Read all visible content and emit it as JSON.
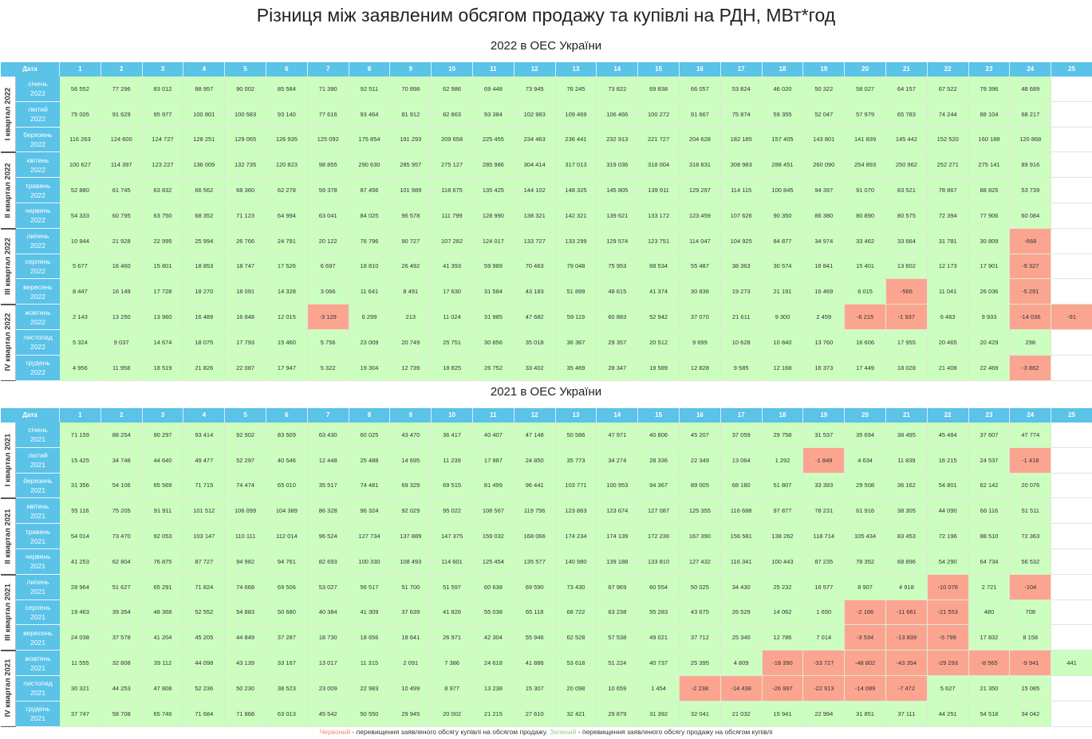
{
  "title": "Різниця між заявленим обсягом продажу та купівлі на РДН, МВт*год",
  "date_label": "Дата",
  "hours": [
    "1",
    "2",
    "3",
    "4",
    "5",
    "6",
    "7",
    "8",
    "9",
    "10",
    "11",
    "12",
    "13",
    "14",
    "15",
    "16",
    "17",
    "18",
    "19",
    "20",
    "21",
    "22",
    "23",
    "24",
    "25"
  ],
  "legend": {
    "red_word": "Червоний",
    "red_text": " - перевищення заявленого обсягу купівлі на обсягом продажу. ",
    "green_word": "Зелений",
    "green_text": " - перевищення заявленого обсягу продажу на обсягом купівлі"
  },
  "colors": {
    "positive": "#ccfec0",
    "negative": "#fba590",
    "header": "#5bc2e8"
  },
  "chart_data": [
    {
      "type": "table",
      "title": "2022 в ОЕС України",
      "quarters": [
        "I квартал 2022",
        "II квартал 2022",
        "III квартал 2022",
        "IV квартал 2022"
      ],
      "rows": [
        {
          "month": "січень",
          "year": "2022",
          "values": [
            "56 552",
            "77 296",
            "83 012",
            "88 957",
            "90 002",
            "85 584",
            "71 390",
            "92 511",
            "70 898",
            "62 986",
            "69 448",
            "73 945",
            "76 245",
            "73 822",
            "69 838",
            "66 057",
            "53 824",
            "46 020",
            "50 322",
            "58 027",
            "64 157",
            "67 522",
            "79 396",
            "48 689",
            ""
          ]
        },
        {
          "month": "лютий",
          "year": "2022",
          "values": [
            "75 005",
            "91 629",
            "95 977",
            "100 801",
            "100 583",
            "93 140",
            "77 616",
            "93 464",
            "81 912",
            "82 863",
            "93 384",
            "102 983",
            "109 469",
            "106 466",
            "100 272",
            "91 667",
            "75 874",
            "59 355",
            "52 047",
            "57 979",
            "65 783",
            "74 244",
            "88 104",
            "68 217",
            ""
          ]
        },
        {
          "month": "березень",
          "year": "2022",
          "values": [
            "116 263",
            "124 600",
            "124 727",
            "128 251",
            "129 065",
            "126 935",
            "125 092",
            "175 854",
            "191 293",
            "209 658",
            "225 455",
            "234 463",
            "236 441",
            "232 913",
            "221 727",
            "204 628",
            "182 185",
            "157 405",
            "143 801",
            "141 839",
            "145 442",
            "152 520",
            "160 188",
            "120 868",
            ""
          ]
        },
        {
          "month": "квітень",
          "year": "2022",
          "values": [
            "100 627",
            "114 397",
            "123 227",
            "136 009",
            "132 735",
            "120 823",
            "98 855",
            "290 630",
            "285 957",
            "275 127",
            "285 986",
            "304 414",
            "317 013",
            "319 036",
            "318 004",
            "318 831",
            "308 983",
            "288 451",
            "260 090",
            "254 893",
            "250 962",
            "252 271",
            "275 141",
            "89 916",
            ""
          ]
        },
        {
          "month": "травень",
          "year": "2022",
          "values": [
            "52 880",
            "61 745",
            "63 832",
            "66 562",
            "68 360",
            "62 278",
            "59 378",
            "87 456",
            "101 989",
            "118 675",
            "135 425",
            "144 102",
            "148 325",
            "145 805",
            "139 911",
            "129 297",
            "114 115",
            "100 845",
            "94 397",
            "91 070",
            "83 521",
            "78 867",
            "88 825",
            "53 739",
            ""
          ]
        },
        {
          "month": "червень",
          "year": "2022",
          "values": [
            "54 333",
            "60 795",
            "63 750",
            "68 352",
            "71 123",
            "64 994",
            "63 041",
            "84 025",
            "96 578",
            "111 799",
            "128 990",
            "138 321",
            "142 321",
            "139 621",
            "133 172",
            "123 459",
            "107 626",
            "90 350",
            "86 380",
            "80 890",
            "80 575",
            "72 394",
            "77 906",
            "60 084",
            ""
          ]
        },
        {
          "month": "липень",
          "year": "2022",
          "values": [
            "10 944",
            "21 928",
            "22 995",
            "25 994",
            "26 766",
            "24 791",
            "20 122",
            "76 796",
            "90 727",
            "107 282",
            "124 017",
            "133 727",
            "133 299",
            "129 574",
            "123 751",
            "114 047",
            "104 925",
            "84 877",
            "34 974",
            "33 462",
            "33 664",
            "31 781",
            "30 809",
            "-668",
            ""
          ]
        },
        {
          "month": "серпень",
          "year": "2022",
          "values": [
            "5 677",
            "16 460",
            "15 801",
            "18 853",
            "18 747",
            "17 526",
            "6 697",
            "18 810",
            "26 492",
            "41 393",
            "59 989",
            "70 463",
            "79 048",
            "75 953",
            "68 534",
            "55 487",
            "38 363",
            "30 574",
            "16 841",
            "15 401",
            "13 602",
            "12 173",
            "17 901",
            "-9 327",
            ""
          ]
        },
        {
          "month": "вересень",
          "year": "2022",
          "values": [
            "8 447",
            "16 149",
            "17 728",
            "18 270",
            "18 091",
            "14 328",
            "3 066",
            "11 641",
            "8 491",
            "17 630",
            "31 584",
            "43 183",
            "51 899",
            "48 615",
            "41 374",
            "30 836",
            "19 273",
            "21 191",
            "16 469",
            "6 015",
            "-566",
            "11 041",
            "26 036",
            "-5 291",
            ""
          ]
        },
        {
          "month": "жовтень",
          "year": "2022",
          "values": [
            "2 143",
            "13 250",
            "13 960",
            "16 489",
            "16 848",
            "12 015",
            "-3 129",
            "6 299",
            "213",
            "11 024",
            "31 985",
            "47 682",
            "59 119",
            "60 883",
            "52 942",
            "37 070",
            "21 611",
            "9 300",
            "2 459",
            "-6 215",
            "-1 937",
            "6 463",
            "9 933",
            "-14 036",
            "-91"
          ]
        },
        {
          "month": "листопад",
          "year": "2022",
          "values": [
            "5 324",
            "9 037",
            "14 674",
            "18 075",
            "17 793",
            "15 460",
            "5 756",
            "23 009",
            "20 749",
            "25 751",
            "30 856",
            "35 018",
            "36 367",
            "29 357",
            "20 512",
            "9 699",
            "10 628",
            "10 840",
            "13 760",
            "16 606",
            "17 955",
            "20 465",
            "20 429",
            "298",
            ""
          ]
        },
        {
          "month": "грудень",
          "year": "2022",
          "values": [
            "4 956",
            "11 958",
            "18 519",
            "21 826",
            "22 087",
            "17 947",
            "5 322",
            "19 304",
            "12 739",
            "18 825",
            "26 752",
            "33 402",
            "35 469",
            "28 347",
            "19 589",
            "12 828",
            "9 585",
            "12 168",
            "16 373",
            "17 449",
            "18 028",
            "21 408",
            "22 469",
            "-3 862",
            ""
          ]
        }
      ]
    },
    {
      "type": "table",
      "title": "2021 в ОЕС України",
      "quarters": [
        "I квартал 2021",
        "II квартал 2021",
        "III квартал 2021",
        "IV квартал 2021"
      ],
      "rows": [
        {
          "month": "січень",
          "year": "2021",
          "values": [
            "71 159",
            "88 254",
            "90 297",
            "93 414",
            "92 902",
            "83 509",
            "63 430",
            "60 025",
            "43 470",
            "36 417",
            "40 407",
            "47 148",
            "50 586",
            "47 971",
            "40 806",
            "45 207",
            "37 059",
            "29 758",
            "31 537",
            "35 694",
            "38 495",
            "45 484",
            "37 607",
            "47 774",
            ""
          ]
        },
        {
          "month": "лютий",
          "year": "2021",
          "values": [
            "15 425",
            "34 748",
            "44 640",
            "49 477",
            "52 297",
            "40 546",
            "12 448",
            "25 488",
            "14 695",
            "11 239",
            "17 987",
            "24 850",
            "35 773",
            "34 274",
            "28 336",
            "22 349",
            "13 064",
            "1 292",
            "-1 849",
            "4 634",
            "11 839",
            "16 215",
            "24 537",
            "-1 418",
            ""
          ]
        },
        {
          "month": "березень",
          "year": "2021",
          "values": [
            "31 356",
            "54 106",
            "65 569",
            "71 715",
            "74 474",
            "65 010",
            "35 517",
            "74 481",
            "69 329",
            "69 515",
            "81 499",
            "96 441",
            "103 771",
            "100 953",
            "94 367",
            "89 005",
            "68 180",
            "51 807",
            "33 393",
            "29 508",
            "36 162",
            "54 801",
            "62 142",
            "20 076",
            ""
          ]
        },
        {
          "month": "квітень",
          "year": "2021",
          "values": [
            "55 116",
            "75 205",
            "91 911",
            "101 512",
            "106 099",
            "104 389",
            "86 328",
            "96 324",
            "92 029",
            "95 022",
            "108 567",
            "119 756",
            "123 863",
            "123 674",
            "127 087",
            "125 355",
            "116 688",
            "97 877",
            "78 231",
            "61 916",
            "38 305",
            "44 090",
            "66 116",
            "51 511",
            ""
          ]
        },
        {
          "month": "травень",
          "year": "2021",
          "values": [
            "54 014",
            "73 470",
            "92 053",
            "103 147",
            "110 111",
            "112 014",
            "96 524",
            "127 734",
            "137 889",
            "147 375",
            "159 032",
            "168 066",
            "174 234",
            "174 139",
            "172 236",
            "167 390",
            "156 581",
            "138 262",
            "118 714",
            "105 434",
            "83 453",
            "72 196",
            "88 510",
            "72 363",
            ""
          ]
        },
        {
          "month": "червень",
          "year": "2021",
          "values": [
            "41 253",
            "62 804",
            "76 875",
            "87 727",
            "94 982",
            "94 761",
            "82 693",
            "100 330",
            "108 493",
            "114 601",
            "125 454",
            "135 577",
            "140 980",
            "139 188",
            "133 810",
            "127 432",
            "116 341",
            "100 443",
            "87 235",
            "78 352",
            "68 896",
            "54 290",
            "64 734",
            "56 532",
            ""
          ]
        },
        {
          "month": "липень",
          "year": "2021",
          "values": [
            "28 964",
            "51 627",
            "65 291",
            "71 824",
            "74 668",
            "69 506",
            "53 027",
            "56 517",
            "51 700",
            "51 597",
            "60 638",
            "69 590",
            "73 430",
            "67 969",
            "60 554",
            "50 025",
            "34 430",
            "25 232",
            "16 577",
            "8 907",
            "4 918",
            "-10 076",
            "2 721",
            "-104",
            ""
          ]
        },
        {
          "month": "серпень",
          "year": "2021",
          "values": [
            "19 463",
            "39 354",
            "48 368",
            "52 552",
            "54 883",
            "50 680",
            "40 384",
            "41 309",
            "37 639",
            "41 826",
            "55 038",
            "65 118",
            "68 722",
            "63 238",
            "55 283",
            "43 675",
            "26 529",
            "14 062",
            "1 650",
            "-2 166",
            "-11 661",
            "-21 553",
            "480",
            "708",
            ""
          ]
        },
        {
          "month": "вересень",
          "year": "2021",
          "values": [
            "24 038",
            "37 578",
            "41 204",
            "45 205",
            "44 849",
            "37 287",
            "18 730",
            "18 656",
            "18 641",
            "26 971",
            "42 304",
            "55 946",
            "62 528",
            "57 538",
            "49 021",
            "37 712",
            "25 340",
            "12 786",
            "7 014",
            "-3 534",
            "-13 839",
            "-5 799",
            "17 832",
            "8 158",
            ""
          ]
        },
        {
          "month": "жовтень",
          "year": "2021",
          "values": [
            "11 555",
            "32 808",
            "39 112",
            "44 098",
            "43 139",
            "33 167",
            "13 017",
            "11 315",
            "2 091",
            "7 386",
            "24 618",
            "41 886",
            "53 618",
            "51 224",
            "40 737",
            "25 395",
            "4 809",
            "-18 390",
            "-33 727",
            "-48 802",
            "-43 354",
            "-29 293",
            "-8 565",
            "-9 941",
            "441"
          ]
        },
        {
          "month": "листопад",
          "year": "2021",
          "values": [
            "30 321",
            "44 253",
            "47 808",
            "52 236",
            "50 230",
            "38 523",
            "23 009",
            "22 983",
            "10 499",
            "8 977",
            "13 238",
            "15 307",
            "20 098",
            "10 659",
            "1 454",
            "-2 238",
            "-14 438",
            "-26 997",
            "-22 913",
            "-14 089",
            "-7 472",
            "5 627",
            "21 350",
            "15 085",
            ""
          ]
        },
        {
          "month": "грудень",
          "year": "2021",
          "values": [
            "37 747",
            "58 708",
            "65 746",
            "71 684",
            "71 868",
            "63 013",
            "45 542",
            "50 550",
            "29 945",
            "20 002",
            "21 215",
            "27 610",
            "32 421",
            "29 879",
            "31 392",
            "32 041",
            "21 032",
            "15 941",
            "22 994",
            "31 851",
            "37 111",
            "44 251",
            "54 518",
            "34 042",
            ""
          ]
        }
      ]
    }
  ]
}
